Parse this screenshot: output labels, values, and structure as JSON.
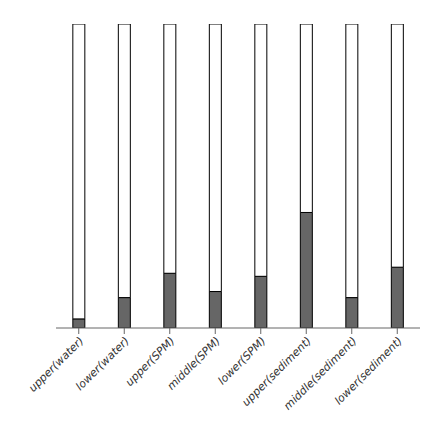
{
  "chart_data": {
    "type": "bar",
    "categories": [
      "upper(water)",
      "lower(water)",
      "upper(SPM)",
      "middle(SPM)",
      "lower(SPM)",
      "upper(sediment)",
      "middle(sediment)",
      "lower(sediment)"
    ],
    "series": [
      {
        "color": "#666666",
        "values": [
          0.03,
          0.1,
          0.18,
          0.12,
          0.17,
          0.38,
          0.1,
          0.2
        ]
      },
      {
        "color": "#ffffff",
        "values": [
          0.97,
          0.9,
          0.82,
          0.88,
          0.83,
          0.62,
          0.9,
          0.8
        ]
      }
    ],
    "stacked": true,
    "ylim": [
      0,
      1.0
    ],
    "grid": false,
    "tick_labels": "x"
  }
}
